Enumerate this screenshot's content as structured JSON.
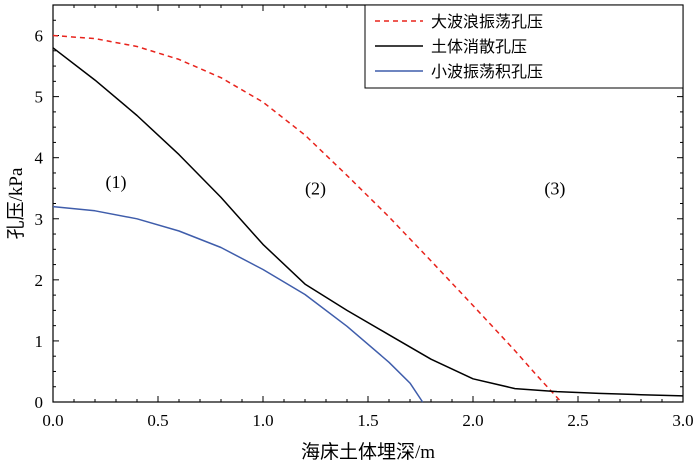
{
  "chart_data": {
    "type": "line",
    "xlabel": "海床土体埋深/m",
    "ylabel": "孔压/kPa",
    "xlim": [
      0,
      3
    ],
    "ylim": [
      0,
      6.5
    ],
    "x_ticks": [
      0,
      0.5,
      1,
      1.5,
      2,
      2.5,
      3
    ],
    "x_tick_labels": [
      "0.0",
      "0.5",
      "1.0",
      "1.5",
      "2.0",
      "2.5",
      "3.0"
    ],
    "y_ticks": [
      0,
      1,
      2,
      3,
      4,
      5,
      6
    ],
    "y_tick_labels": [
      "0",
      "1",
      "2",
      "3",
      "4",
      "5",
      "6"
    ],
    "grid": false,
    "legend_position": "top-right",
    "series": [
      {
        "name": "大波浪振荡孔压",
        "color": "#e8231c",
        "dash": "dashed",
        "x": [
          0,
          0.2,
          0.4,
          0.6,
          0.8,
          1.0,
          1.2,
          1.4,
          1.6,
          1.8,
          2.0,
          2.2,
          2.3,
          2.42
        ],
        "y": [
          6.0,
          5.95,
          5.82,
          5.61,
          5.31,
          4.91,
          4.37,
          3.71,
          3.03,
          2.31,
          1.58,
          0.84,
          0.45,
          0.0
        ]
      },
      {
        "name": "土体消散孔压",
        "color": "#000000",
        "dash": "solid",
        "x": [
          0,
          0.2,
          0.4,
          0.6,
          0.8,
          1.0,
          1.2,
          1.4,
          1.6,
          1.8,
          2.0,
          2.2,
          2.4,
          2.6,
          2.8,
          3.0
        ],
        "y": [
          5.8,
          5.27,
          4.69,
          4.05,
          3.35,
          2.58,
          1.93,
          1.5,
          1.1,
          0.7,
          0.38,
          0.22,
          0.17,
          0.14,
          0.12,
          0.1
        ]
      },
      {
        "name": "小波振荡积孔压",
        "color": "#3f5dab",
        "dash": "solid",
        "x": [
          0,
          0.2,
          0.4,
          0.6,
          0.8,
          1.0,
          1.2,
          1.4,
          1.6,
          1.7,
          1.76
        ],
        "y": [
          3.2,
          3.13,
          3.0,
          2.8,
          2.53,
          2.17,
          1.76,
          1.24,
          0.65,
          0.31,
          0.0
        ]
      }
    ],
    "annotations": [
      {
        "text": "(1)",
        "x": 0.3,
        "y": 3.5
      },
      {
        "text": "(2)",
        "x": 1.25,
        "y": 3.4
      },
      {
        "text": "(3)",
        "x": 2.39,
        "y": 3.4
      }
    ]
  }
}
